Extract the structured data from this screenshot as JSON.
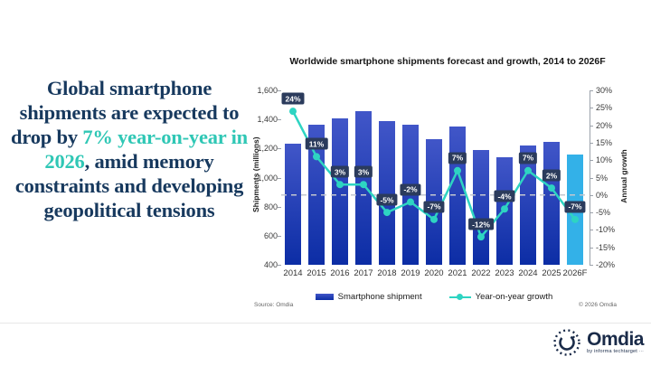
{
  "headline": {
    "segments": [
      {
        "text": "Global smartphone shipments are expected to drop by "
      },
      {
        "text": "7% year-on-year in 2026"
      },
      {
        "text": ", amid memory constraints and developing geopolitical tensions"
      }
    ]
  },
  "chart_data": {
    "type": "bar",
    "title": "Worldwide smartphone shipments forecast and growth, 2014 to 2026F",
    "categories": [
      "2014",
      "2015",
      "2016",
      "2017",
      "2018",
      "2019",
      "2020",
      "2021",
      "2022",
      "2023",
      "2024",
      "2025",
      "2026F"
    ],
    "series": [
      {
        "name": "Smartphone shipment",
        "type": "bar",
        "unit": "millions",
        "values": [
          1235,
          1365,
          1410,
          1455,
          1390,
          1365,
          1263,
          1350,
          1190,
          1140,
          1220,
          1245,
          1158
        ]
      },
      {
        "name": "Year-on-year growth",
        "type": "line",
        "unit": "percent",
        "values": [
          24,
          11,
          3,
          3,
          -5,
          -2,
          -7,
          7,
          -12,
          -4,
          7,
          2,
          -7
        ],
        "labels": [
          "24%",
          "11%",
          "3%",
          "3%",
          "-5%",
          "-2%",
          "-7%",
          "7%",
          "-12%",
          "-4%",
          "7%",
          "2%",
          "-7%"
        ]
      }
    ],
    "ylabel_left": "Shipments (millions)",
    "ylabel_right": "Annual growth",
    "ylim_left": [
      400,
      1600
    ],
    "ylim_right": [
      -20,
      30
    ],
    "left_ticks": [
      "1,600",
      "1,400",
      "1,200",
      "1,000",
      "800",
      "600",
      "400"
    ],
    "left_tick_values": [
      1600,
      1400,
      1200,
      1000,
      800,
      600,
      400
    ],
    "right_ticks": [
      "30%",
      "25%",
      "20%",
      "15%",
      "10%",
      "5%",
      "0%",
      "-5%",
      "-10%",
      "-15%",
      "-20%"
    ],
    "right_tick_values": [
      30,
      25,
      20,
      15,
      10,
      5,
      0,
      -5,
      -10,
      -15,
      -20
    ],
    "zero_growth_dashed_line": true,
    "forecast_index": 12,
    "legend_position": "bottom",
    "grid": "off"
  },
  "footer": {
    "source": "Source: Omdia",
    "copyright": "© 2026 Omdia"
  },
  "logo": {
    "name": "Omdia",
    "tagline": "by informa techtarget ∙∙∙"
  },
  "colors": {
    "headline_navy": "#17395e",
    "headline_teal": "#2fc7b5",
    "bar_top": "#4156c8",
    "bar_bottom": "#0c2da5",
    "bar_forecast": "#33b1e8",
    "line": "#2ed4c2",
    "label_box_bg": "#2b3b5c",
    "label_box_text": "#ffffff",
    "zero_line": "#c3c7cf",
    "logo_navy": "#1a2b49"
  }
}
